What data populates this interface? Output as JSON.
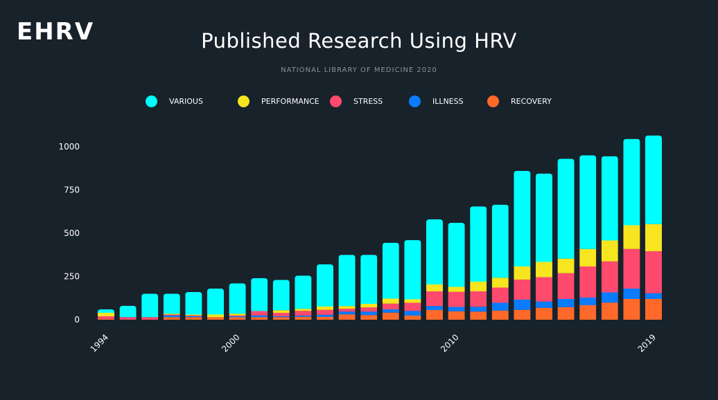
{
  "logo": "EHRV",
  "chart_data": {
    "type": "bar",
    "stacked": true,
    "title": "Published Research Using HRV",
    "subtitle": "NATIONAL LIBRARY OF MEDICINE 2020",
    "xlabel": "",
    "ylabel": "",
    "ylim": [
      0,
      1000
    ],
    "yticks": [
      "0",
      "250",
      "500",
      "750",
      "1000"
    ],
    "ytick_values": [
      0,
      250,
      500,
      750,
      1000
    ],
    "categories": [
      1994,
      1995,
      1996,
      1997,
      1998,
      1999,
      2000,
      2001,
      2002,
      2003,
      2004,
      2005,
      2006,
      2007,
      2008,
      2009,
      2010,
      2011,
      2012,
      2013,
      2014,
      2015,
      2016,
      2017,
      2018,
      2019
    ],
    "xtick_labels": [
      "1994",
      "2000",
      "2010",
      "2019"
    ],
    "legend_position": "top",
    "grid": false,
    "series": [
      {
        "name": "RECOVERY",
        "color": "#ff6a2a",
        "values": [
          5,
          0,
          0,
          15,
          15,
          15,
          15,
          15,
          15,
          17,
          17,
          31,
          27,
          41,
          24,
          56,
          49,
          47,
          53,
          57,
          69,
          73,
          84,
          99,
          120,
          120
        ]
      },
      {
        "name": "ILLNESS",
        "color": "#0a7cff",
        "values": [
          0,
          0,
          0,
          10,
          5,
          0,
          5,
          10,
          5,
          7,
          12,
          16,
          20,
          19,
          27,
          23,
          25,
          28,
          45,
          59,
          36,
          47,
          44,
          59,
          60,
          33
        ]
      },
      {
        "name": "STRESS",
        "color": "#ff4a6e",
        "values": [
          15,
          15,
          15,
          5,
          5,
          0,
          5,
          25,
          20,
          27,
          28,
          17,
          24,
          33,
          47,
          85,
          87,
          89,
          88,
          116,
          141,
          149,
          180,
          179,
          229,
          243
        ]
      },
      {
        "name": "PERFORMANCE",
        "color": "#f7e51f",
        "values": [
          20,
          0,
          0,
          5,
          5,
          15,
          10,
          0,
          15,
          12,
          19,
          15,
          21,
          29,
          20,
          40,
          29,
          56,
          57,
          76,
          88,
          84,
          101,
          121,
          137,
          157
        ]
      },
      {
        "name": "VARIOUS",
        "color": "#00ffff",
        "values": [
          20,
          65,
          135,
          115,
          130,
          150,
          175,
          190,
          175,
          192,
          244,
          296,
          283,
          323,
          342,
          376,
          370,
          435,
          422,
          552,
          511,
          577,
          541,
          487,
          499,
          512
        ]
      }
    ],
    "legend_order": [
      "VARIOUS",
      "PERFORMANCE",
      "STRESS",
      "ILLNESS",
      "RECOVERY"
    ]
  }
}
